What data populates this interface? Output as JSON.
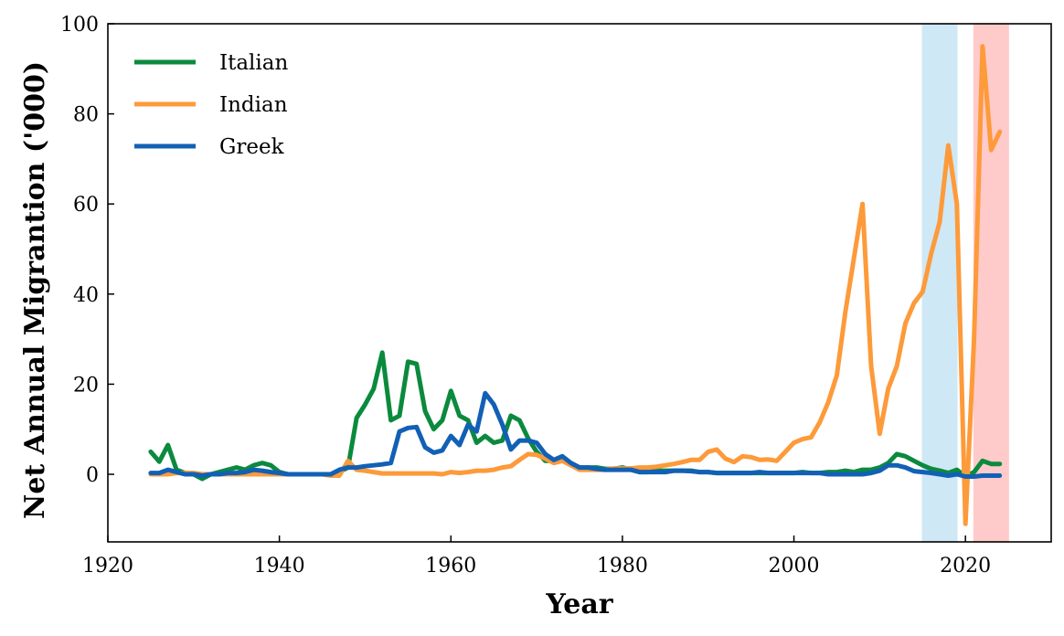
{
  "chart_data": {
    "type": "line",
    "title": "",
    "xlabel": "Year",
    "ylabel": "Net Annual Migrantion ('000)",
    "xlim": [
      1920,
      2030
    ],
    "ylim": [
      -15,
      100
    ],
    "xticks": [
      1920,
      1940,
      1960,
      1980,
      2000,
      2020
    ],
    "yticks": [
      0,
      20,
      40,
      60,
      80,
      100
    ],
    "grid": false,
    "legend_position": "top-left",
    "shaded_regions": [
      {
        "x0": 2015,
        "x1": 2019,
        "color": "#cfe8f5"
      },
      {
        "x0": 2021,
        "x1": 2025,
        "color": "#ffcaca"
      }
    ],
    "series": [
      {
        "name": "Italian",
        "color": "#0b8a3e",
        "x": [
          1925,
          1926,
          1927,
          1928,
          1929,
          1930,
          1931,
          1932,
          1933,
          1934,
          1935,
          1936,
          1937,
          1938,
          1939,
          1940,
          1941,
          1942,
          1943,
          1944,
          1945,
          1946,
          1947,
          1948,
          1949,
          1950,
          1951,
          1952,
          1953,
          1954,
          1955,
          1956,
          1957,
          1958,
          1959,
          1960,
          1961,
          1962,
          1963,
          1964,
          1965,
          1966,
          1967,
          1968,
          1969,
          1970,
          1971,
          1972,
          1973,
          1974,
          1975,
          1976,
          1977,
          1978,
          1979,
          1980,
          1981,
          1982,
          1983,
          1984,
          1985,
          1986,
          1987,
          1988,
          1989,
          1990,
          1991,
          1992,
          1993,
          1994,
          1995,
          1996,
          1997,
          1998,
          1999,
          2000,
          2001,
          2002,
          2003,
          2004,
          2005,
          2006,
          2007,
          2008,
          2009,
          2010,
          2011,
          2012,
          2013,
          2014,
          2015,
          2016,
          2017,
          2018,
          2019,
          2020,
          2021,
          2022,
          2023,
          2024
        ],
        "y": [
          5,
          2.8,
          6.5,
          1,
          0.3,
          0,
          -1,
          0,
          0.5,
          1,
          1.5,
          1,
          2,
          2.5,
          2,
          0.5,
          0,
          0,
          0,
          0,
          0,
          0,
          0.5,
          1.5,
          12.5,
          15.5,
          19,
          27,
          12,
          13,
          25,
          24.5,
          14,
          10,
          12,
          18.5,
          13,
          12,
          7,
          8.5,
          7,
          7.5,
          13,
          12,
          8,
          5,
          3,
          3,
          3,
          2.5,
          1.5,
          1.5,
          1.5,
          1.2,
          1.2,
          1.5,
          1,
          0.5,
          0.5,
          0.8,
          0.8,
          0.8,
          0.8,
          0.8,
          0.5,
          0.5,
          0.3,
          0.3,
          0.3,
          0.3,
          0.3,
          0.3,
          0.3,
          0.3,
          0.3,
          0.3,
          0.5,
          0.3,
          0.3,
          0.5,
          0.5,
          0.8,
          0.5,
          1,
          1,
          1.5,
          2.5,
          4.5,
          4,
          3,
          2,
          1.2,
          0.8,
          0.3,
          1,
          -0.5,
          0.5,
          3,
          2.3,
          2.3
        ]
      },
      {
        "name": "Indian",
        "color": "#fd9a3a",
        "x": [
          1925,
          1926,
          1927,
          1928,
          1929,
          1930,
          1931,
          1932,
          1933,
          1934,
          1935,
          1936,
          1937,
          1938,
          1939,
          1940,
          1941,
          1942,
          1943,
          1944,
          1945,
          1946,
          1947,
          1948,
          1949,
          1950,
          1951,
          1952,
          1953,
          1954,
          1955,
          1956,
          1957,
          1958,
          1959,
          1960,
          1961,
          1962,
          1963,
          1964,
          1965,
          1966,
          1967,
          1968,
          1969,
          1970,
          1971,
          1972,
          1973,
          1974,
          1975,
          1976,
          1977,
          1978,
          1979,
          1980,
          1981,
          1982,
          1983,
          1984,
          1985,
          1986,
          1987,
          1988,
          1989,
          1990,
          1991,
          1992,
          1993,
          1994,
          1995,
          1996,
          1997,
          1998,
          1999,
          2000,
          2001,
          2002,
          2003,
          2004,
          2005,
          2006,
          2007,
          2008,
          2009,
          2010,
          2011,
          2012,
          2013,
          2014,
          2015,
          2016,
          2017,
          2018,
          2019,
          2020,
          2021,
          2022,
          2023,
          2024
        ],
        "y": [
          0,
          0,
          0,
          0.3,
          0.3,
          0.3,
          0,
          0,
          0,
          0,
          0,
          0,
          0,
          0,
          0,
          0,
          0,
          0,
          0,
          0,
          0,
          -0.3,
          -0.3,
          3,
          1,
          0.8,
          0.5,
          0.2,
          0.2,
          0.2,
          0.2,
          0.2,
          0.2,
          0.2,
          0,
          0.5,
          0.3,
          0.5,
          0.8,
          0.8,
          1,
          1.5,
          1.8,
          3.2,
          4.5,
          4.3,
          3.5,
          2.5,
          3,
          2,
          1,
          1,
          1,
          1,
          1.3,
          1.3,
          1.3,
          1.5,
          1.5,
          1.7,
          2,
          2.3,
          2.7,
          3.2,
          3.2,
          5,
          5.5,
          3.5,
          2.7,
          4,
          3.8,
          3.2,
          3.3,
          3,
          5,
          7,
          7.8,
          8.2,
          11.5,
          16,
          22,
          36,
          48,
          60,
          24,
          9,
          19,
          24,
          33.5,
          38,
          40.5,
          49,
          56,
          73,
          60,
          -11,
          30,
          95,
          72,
          76
        ]
      },
      {
        "name": "Greek",
        "color": "#1260b6",
        "x": [
          1925,
          1926,
          1927,
          1928,
          1929,
          1930,
          1931,
          1932,
          1933,
          1934,
          1935,
          1936,
          1937,
          1938,
          1939,
          1940,
          1941,
          1942,
          1943,
          1944,
          1945,
          1946,
          1947,
          1948,
          1949,
          1950,
          1951,
          1952,
          1953,
          1954,
          1955,
          1956,
          1957,
          1958,
          1959,
          1960,
          1961,
          1962,
          1963,
          1964,
          1965,
          1966,
          1967,
          1968,
          1969,
          1970,
          1971,
          1972,
          1973,
          1974,
          1975,
          1976,
          1977,
          1978,
          1979,
          1980,
          1981,
          1982,
          1983,
          1984,
          1985,
          1986,
          1987,
          1988,
          1989,
          1990,
          1991,
          1992,
          1993,
          1994,
          1995,
          1996,
          1997,
          1998,
          1999,
          2000,
          2001,
          2002,
          2003,
          2004,
          2005,
          2006,
          2007,
          2008,
          2009,
          2010,
          2011,
          2012,
          2013,
          2014,
          2015,
          2016,
          2017,
          2018,
          2019,
          2020,
          2021,
          2022,
          2023,
          2024
        ],
        "y": [
          0.3,
          0.3,
          1,
          0.5,
          0,
          0,
          -0.3,
          0,
          0,
          0.3,
          0.3,
          0.5,
          1,
          0.8,
          0.5,
          0.3,
          0,
          0,
          0,
          0,
          0,
          0,
          1,
          1.5,
          1.5,
          1.8,
          2,
          2.2,
          2.5,
          9.5,
          10.3,
          10.5,
          6,
          4.8,
          5.3,
          8.5,
          6.5,
          11,
          9.5,
          18,
          15.5,
          11,
          5.5,
          7.5,
          7.5,
          7,
          4.5,
          3.2,
          4,
          2.5,
          1.5,
          1.5,
          1.2,
          1,
          1,
          1,
          1,
          0.5,
          0.5,
          0.5,
          0.5,
          0.8,
          0.8,
          0.7,
          0.5,
          0.5,
          0.3,
          0.3,
          0.3,
          0.3,
          0.3,
          0.5,
          0.3,
          0.3,
          0.3,
          0.3,
          0.3,
          0.3,
          0.3,
          0,
          0,
          0,
          0,
          0,
          0.3,
          0.8,
          2,
          2,
          1.5,
          0.7,
          0.5,
          0.3,
          0,
          -0.3,
          0,
          -0.5,
          -0.5,
          -0.3,
          -0.3,
          -0.3
        ]
      }
    ]
  }
}
